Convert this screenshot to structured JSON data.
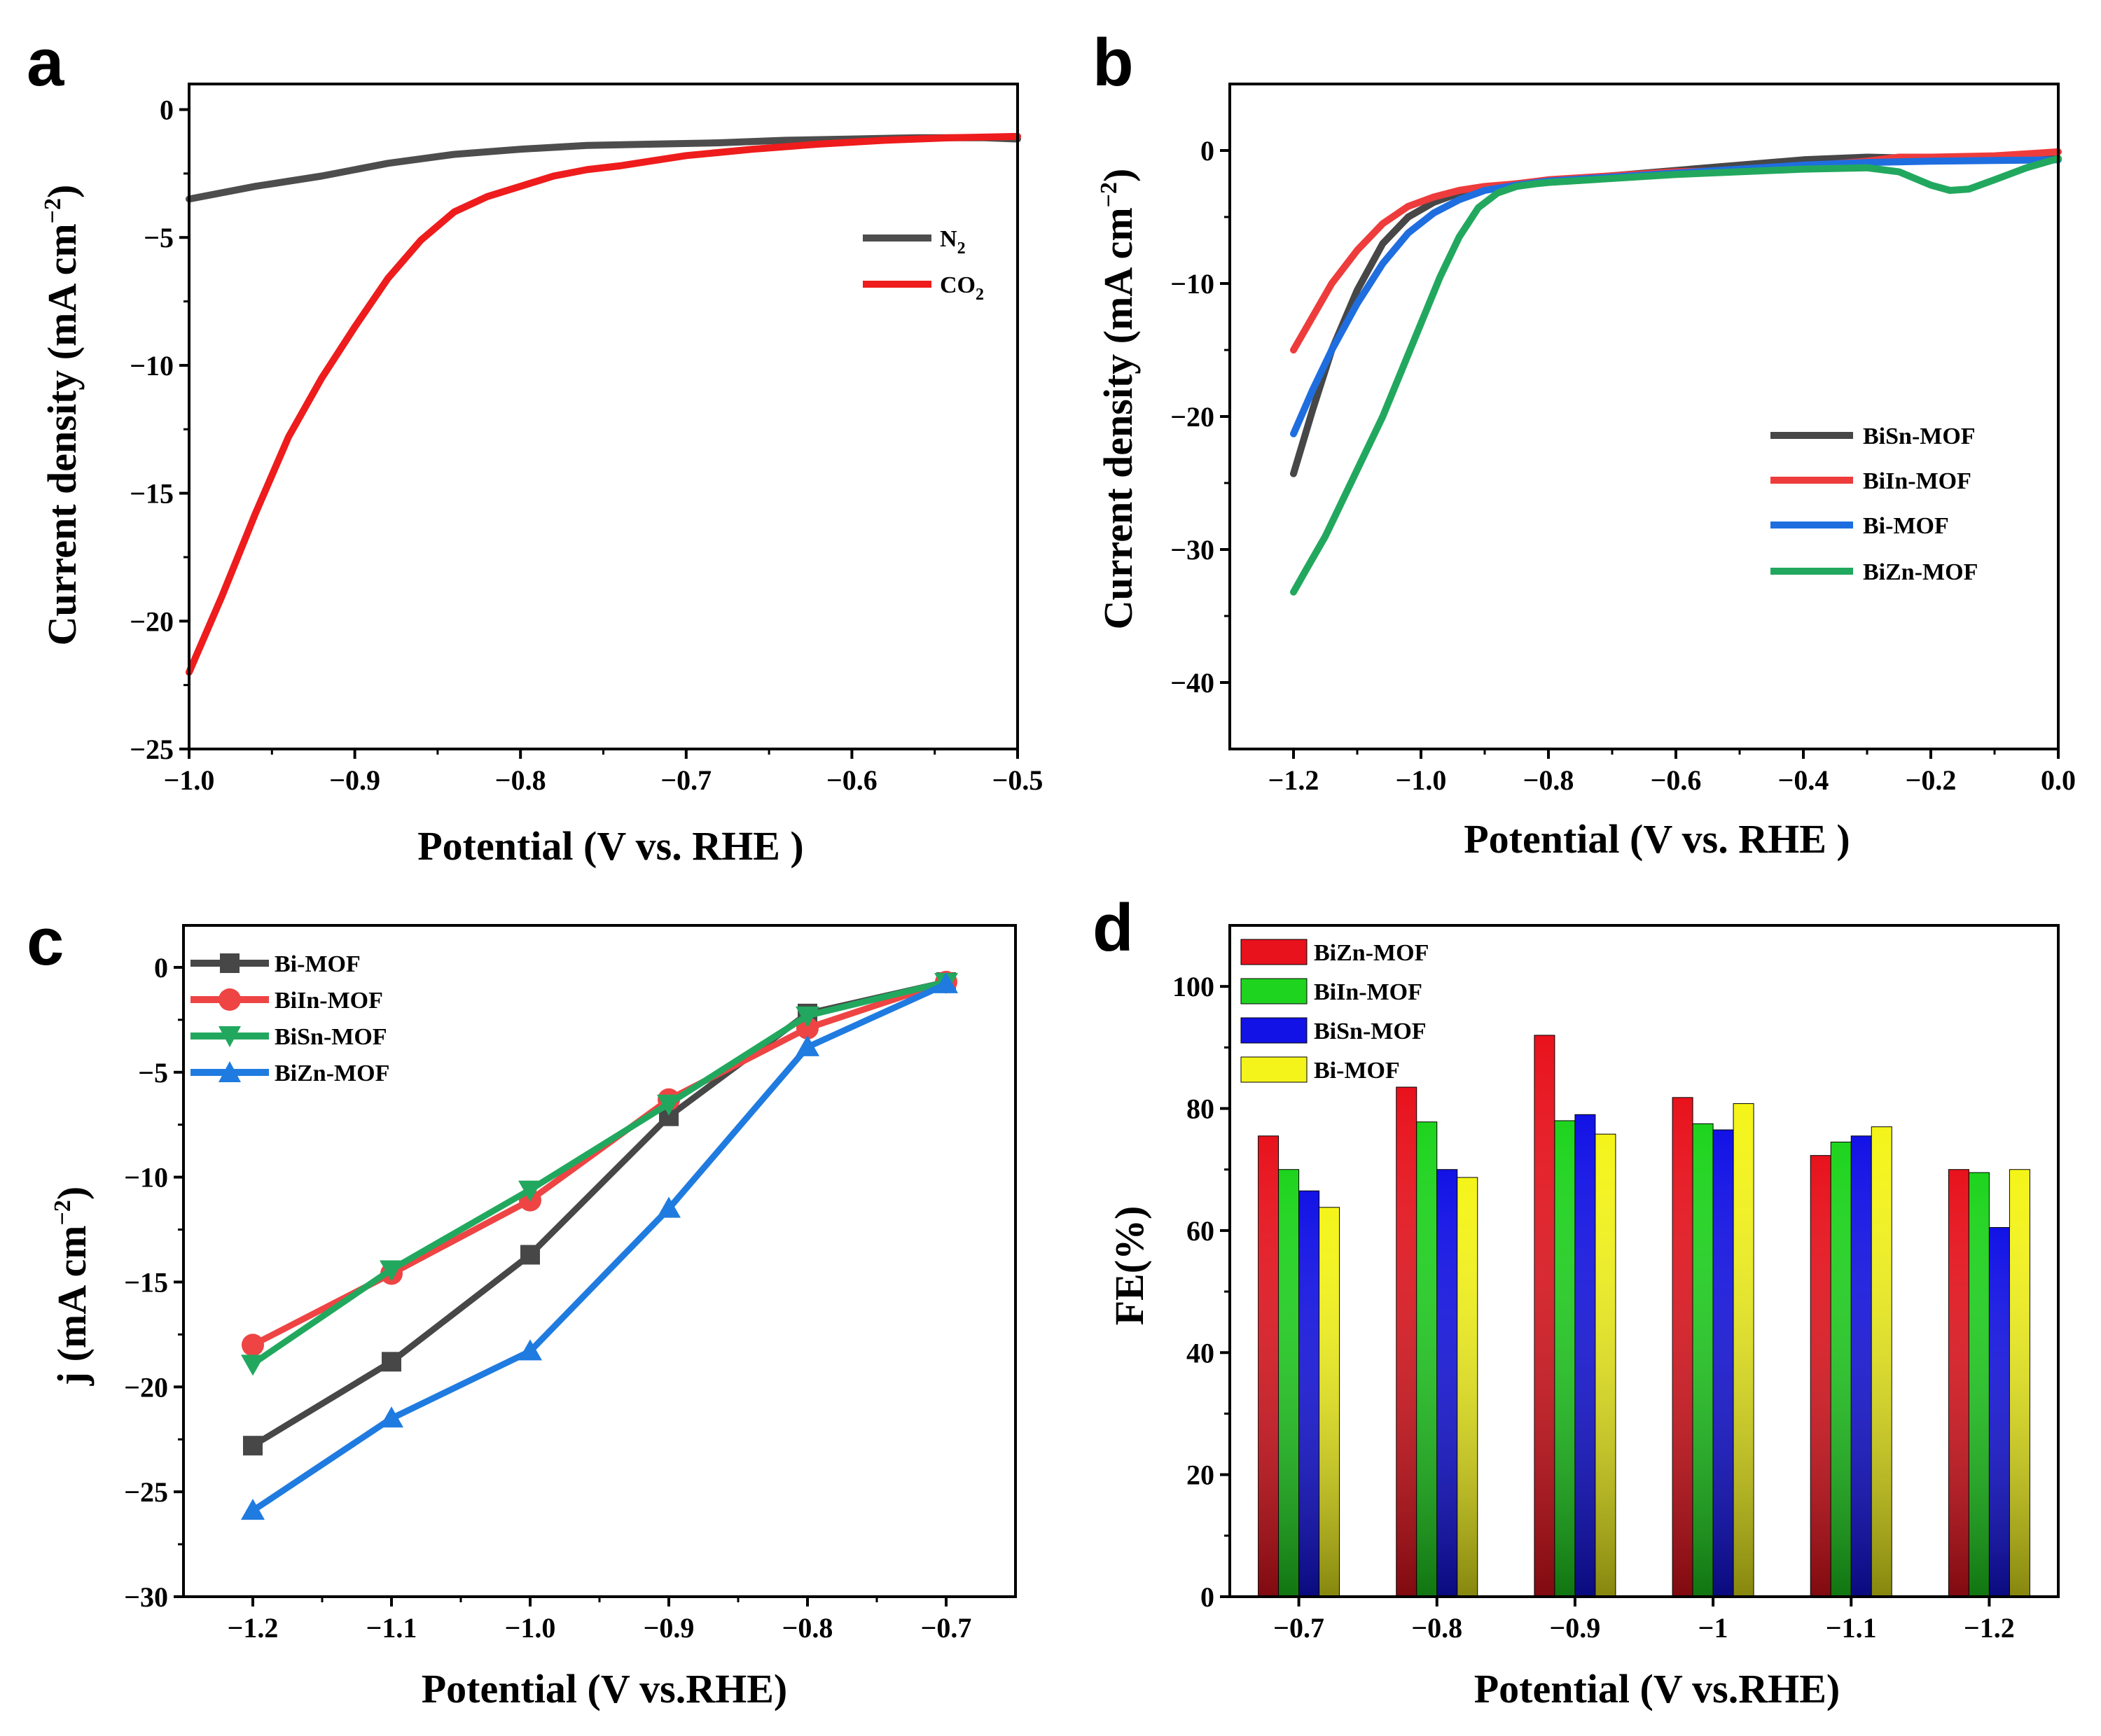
{
  "panels": [
    {
      "letter": "a",
      "chart_data": {
        "type": "line",
        "xlabel": "Potential (V vs. RHE )",
        "ylabel_parts": [
          "Current density (mA cm",
          "−2",
          ")"
        ],
        "xlim": [
          -1.0,
          -0.5
        ],
        "ylim": [
          -25,
          1
        ],
        "xticks": [
          -1.0,
          -0.9,
          -0.8,
          -0.7,
          -0.6,
          -0.5
        ],
        "xtick_labels": [
          "−1.0",
          "−0.9",
          "−0.8",
          "−0.7",
          "−0.6",
          "−0.5"
        ],
        "yticks": [
          0,
          -5,
          -10,
          -15,
          -20,
          -25
        ],
        "ytick_labels": [
          "0",
          "−5",
          "−10",
          "−15",
          "−20",
          "−25"
        ],
        "legend_position": "right",
        "series": [
          {
            "name": "N2",
            "label_main": "N",
            "label_sub": "2",
            "color": "#4d4d4d",
            "x": [
              -1.0,
              -0.96,
              -0.92,
              -0.88,
              -0.84,
              -0.8,
              -0.76,
              -0.72,
              -0.68,
              -0.64,
              -0.6,
              -0.56,
              -0.52,
              -0.5
            ],
            "y": [
              -3.5,
              -3.0,
              -2.6,
              -2.1,
              -1.75,
              -1.55,
              -1.4,
              -1.35,
              -1.3,
              -1.2,
              -1.15,
              -1.1,
              -1.1,
              -1.15
            ]
          },
          {
            "name": "CO2",
            "label_main": "CO",
            "label_sub": "2",
            "color": "#ee1c1c",
            "x": [
              -1.0,
              -0.98,
              -0.96,
              -0.94,
              -0.92,
              -0.9,
              -0.88,
              -0.86,
              -0.84,
              -0.82,
              -0.8,
              -0.78,
              -0.76,
              -0.74,
              -0.72,
              -0.7,
              -0.66,
              -0.62,
              -0.58,
              -0.54,
              -0.5
            ],
            "y": [
              -22.0,
              -19.0,
              -15.8,
              -12.8,
              -10.5,
              -8.5,
              -6.6,
              -5.1,
              -4.0,
              -3.4,
              -3.0,
              -2.6,
              -2.35,
              -2.2,
              -2.0,
              -1.8,
              -1.55,
              -1.35,
              -1.2,
              -1.1,
              -1.05
            ]
          }
        ]
      }
    },
    {
      "letter": "b",
      "chart_data": {
        "type": "line",
        "xlabel": "Potential (V vs. RHE )",
        "ylabel_parts": [
          "Current density (mA cm",
          "−2",
          ")"
        ],
        "xlim": [
          -1.3,
          0.0
        ],
        "ylim": [
          -45,
          5
        ],
        "xticks": [
          -1.2,
          -1.0,
          -0.8,
          -0.6,
          -0.4,
          -0.2,
          0.0
        ],
        "xtick_labels": [
          "−1.2",
          "−1.0",
          "−0.8",
          "−0.6",
          "−0.4",
          "−0.2",
          "0.0"
        ],
        "yticks": [
          0,
          -10,
          -20,
          -30,
          -40
        ],
        "ytick_labels": [
          "0",
          "−10",
          "−20",
          "−30",
          "−40"
        ],
        "legend_position": "lower right",
        "series": [
          {
            "name": "BiSn-MOF",
            "color": "#474747",
            "x": [
              -1.2,
              -1.17,
              -1.14,
              -1.1,
              -1.06,
              -1.02,
              -0.98,
              -0.94,
              -0.9,
              -0.85,
              -0.8,
              -0.7,
              -0.6,
              -0.5,
              -0.4,
              -0.3,
              -0.2,
              -0.1,
              0.0
            ],
            "y": [
              -24.3,
              -19.5,
              -15.0,
              -10.5,
              -7.0,
              -5.0,
              -3.9,
              -3.2,
              -2.8,
              -2.5,
              -2.3,
              -1.9,
              -1.5,
              -1.1,
              -0.7,
              -0.5,
              -0.6,
              -0.7,
              -0.6
            ]
          },
          {
            "name": "BiIn-MOF",
            "color": "#ee3c3c",
            "x": [
              -1.2,
              -1.17,
              -1.14,
              -1.1,
              -1.06,
              -1.02,
              -0.98,
              -0.94,
              -0.9,
              -0.85,
              -0.8,
              -0.7,
              -0.6,
              -0.5,
              -0.4,
              -0.3,
              -0.25,
              -0.2,
              -0.1,
              0.0
            ],
            "y": [
              -15.0,
              -12.5,
              -10.0,
              -7.5,
              -5.5,
              -4.2,
              -3.5,
              -3.0,
              -2.7,
              -2.5,
              -2.2,
              -1.9,
              -1.6,
              -1.5,
              -1.2,
              -0.8,
              -0.5,
              -0.5,
              -0.4,
              -0.1
            ]
          },
          {
            "name": "Bi-MOF",
            "color": "#1f6ee0",
            "x": [
              -1.2,
              -1.17,
              -1.14,
              -1.1,
              -1.06,
              -1.02,
              -0.98,
              -0.94,
              -0.9,
              -0.85,
              -0.8,
              -0.7,
              -0.6,
              -0.5,
              -0.4,
              -0.3,
              -0.2,
              -0.1,
              0.0
            ],
            "y": [
              -21.3,
              -18.0,
              -15.0,
              -11.5,
              -8.5,
              -6.2,
              -4.7,
              -3.7,
              -3.0,
              -2.6,
              -2.3,
              -2.0,
              -1.7,
              -1.4,
              -1.1,
              -0.9,
              -0.8,
              -0.75,
              -0.7
            ]
          },
          {
            "name": "BiZn-MOF",
            "color": "#22a85e",
            "x": [
              -1.2,
              -1.18,
              -1.15,
              -1.12,
              -1.09,
              -1.06,
              -1.03,
              -1.0,
              -0.97,
              -0.94,
              -0.91,
              -0.88,
              -0.85,
              -0.82,
              -0.8,
              -0.7,
              -0.6,
              -0.5,
              -0.4,
              -0.3,
              -0.25,
              -0.2,
              -0.17,
              -0.14,
              -0.1,
              -0.05,
              0.0
            ],
            "y": [
              -33.2,
              -31.5,
              -29.0,
              -26.0,
              -23.0,
              -20.0,
              -16.5,
              -13.0,
              -9.5,
              -6.5,
              -4.3,
              -3.2,
              -2.7,
              -2.5,
              -2.4,
              -2.1,
              -1.8,
              -1.6,
              -1.4,
              -1.3,
              -1.6,
              -2.6,
              -3.0,
              -2.9,
              -2.2,
              -1.3,
              -0.6
            ]
          }
        ]
      }
    },
    {
      "letter": "c",
      "chart_data": {
        "type": "line",
        "xlabel": "Potential (V vs.RHE)",
        "ylabel_parts": [
          "j (mA cm",
          "−2",
          ")"
        ],
        "xlim": [
          -1.25,
          -0.65
        ],
        "ylim": [
          -30,
          2
        ],
        "xticks": [
          -1.2,
          -1.1,
          -1.0,
          -0.9,
          -0.8,
          -0.7
        ],
        "xtick_labels": [
          "−1.2",
          "−1.1",
          "−1.0",
          "−0.9",
          "−0.8",
          "−0.7"
        ],
        "yticks": [
          0,
          -5,
          -10,
          -15,
          -20,
          -25,
          -30
        ],
        "ytick_labels": [
          "0",
          "−5",
          "−10",
          "−15",
          "−20",
          "−25",
          "−30"
        ],
        "legend_position": "top-left",
        "series": [
          {
            "name": "Bi-MOF",
            "marker": "square",
            "color": "#474747",
            "x": [
              -1.2,
              -1.1,
              -1.0,
              -0.9,
              -0.8,
              -0.7
            ],
            "y": [
              -22.8,
              -18.8,
              -13.7,
              -7.1,
              -2.2,
              -0.7
            ]
          },
          {
            "name": "BiIn-MOF",
            "marker": "circle",
            "color": "#ee4444",
            "x": [
              -1.2,
              -1.1,
              -1.0,
              -0.9,
              -0.8,
              -0.7
            ],
            "y": [
              -18.0,
              -14.6,
              -11.1,
              -6.3,
              -2.9,
              -0.7
            ]
          },
          {
            "name": "BiSn-MOF",
            "marker": "triangle-down",
            "color": "#22a85e",
            "x": [
              -1.2,
              -1.1,
              -1.0,
              -0.9,
              -0.8,
              -0.7
            ],
            "y": [
              -18.9,
              -14.4,
              -10.6,
              -6.5,
              -2.3,
              -0.7
            ]
          },
          {
            "name": "BiZn-MOF",
            "marker": "triangle-up",
            "color": "#1f7be0",
            "x": [
              -1.2,
              -1.1,
              -1.0,
              -0.9,
              -0.8,
              -0.7
            ],
            "y": [
              -25.9,
              -21.5,
              -18.3,
              -11.5,
              -3.8,
              -0.8
            ]
          }
        ]
      }
    },
    {
      "letter": "d",
      "chart_data": {
        "type": "bar",
        "xlabel": "Potential (V vs.RHE)",
        "ylabel": "FE(%)",
        "categories": [
          "−0.7",
          "−0.8",
          "−0.9",
          "−1",
          "−1.1",
          "−1.2"
        ],
        "ylim": [
          0,
          110
        ],
        "yticks": [
          0,
          20,
          40,
          60,
          80,
          100
        ],
        "ytick_labels": [
          "0",
          "20",
          "40",
          "60",
          "80",
          "100"
        ],
        "legend_position": "top-left",
        "series": [
          {
            "name": "BiZn-MOF",
            "color": "#e8121c",
            "values": [
              75.5,
              83.5,
              92.0,
              81.8,
              72.3,
              70.0
            ]
          },
          {
            "name": "BiIn-MOF",
            "color": "#1ed41e",
            "values": [
              70.0,
              77.8,
              78.0,
              77.5,
              74.5,
              69.5
            ]
          },
          {
            "name": "BiSn-MOF",
            "color": "#1212e6",
            "values": [
              66.5,
              70.0,
              79.0,
              76.5,
              75.5,
              60.5
            ]
          },
          {
            "name": "Bi-MOF",
            "color": "#f4f41a",
            "values": [
              63.8,
              68.7,
              75.8,
              80.8,
              77.0,
              70.0
            ]
          }
        ]
      }
    }
  ]
}
